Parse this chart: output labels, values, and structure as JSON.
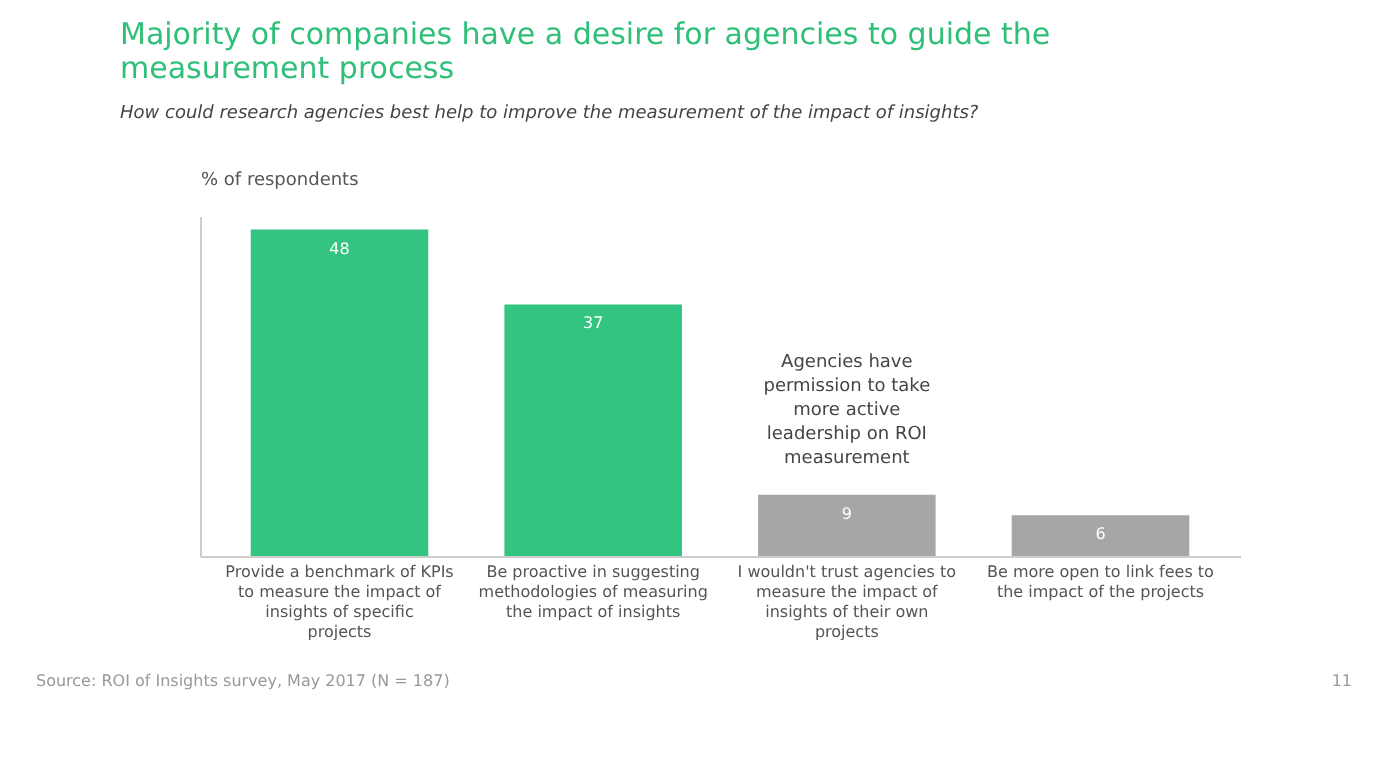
{
  "chart_data": {
    "type": "bar",
    "title": "Majority of companies have a desire for agencies to guide the measurement process",
    "subtitle": "How could research agencies best help to improve the measurement of the impact of insights?",
    "ylabel": "% of respondents",
    "categories": [
      "Provide a benchmark of KPIs to measure the impact of insights of specific projects",
      "Be proactive in suggesting methodologies of measuring the impact of insights",
      "I wouldn't trust agencies to measure the impact of insights of their own projects",
      "Be more open to link fees to the impact of the projects"
    ],
    "values": [
      48,
      37,
      9,
      6
    ],
    "colors": [
      "#33c481",
      "#33c481",
      "#a6a6a6",
      "#a6a6a6"
    ],
    "data_labels": true,
    "grid": false,
    "annotations": [
      {
        "text": "Agencies have permission to take more active leadership on ROI measurement",
        "x": "I wouldn't trust agencies to measure the impact of insights of their own projects",
        "y": 9
      },
      "Source: ROI of Insights survey, May 2017 (N = 187)",
      "11"
    ]
  }
}
